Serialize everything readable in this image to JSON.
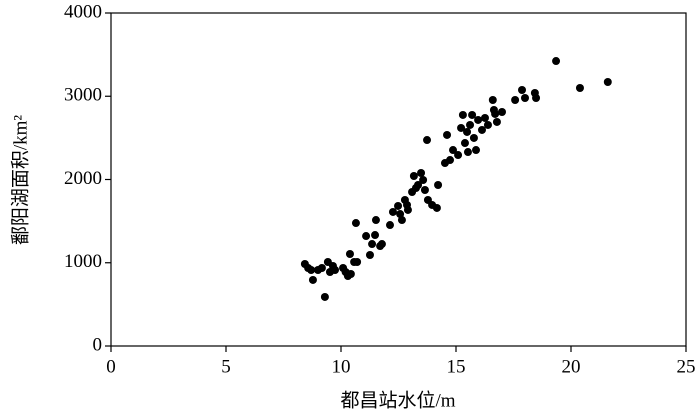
{
  "chart_data": {
    "type": "scatter",
    "x_label": "都昌站水位/m",
    "y_label": "鄱阳湖面积/km²",
    "xlim": [
      0,
      25
    ],
    "xticks": [
      0,
      5,
      10,
      15,
      20,
      25
    ],
    "ylim": [
      0,
      4000
    ],
    "yticks": [
      0,
      1000,
      2000,
      3000,
      4000
    ],
    "color": "#000000",
    "x": [
      8.43,
      8.57,
      8.7,
      8.78,
      9.0,
      9.17,
      9.3,
      9.43,
      9.52,
      9.65,
      9.74,
      10.09,
      10.2,
      10.3,
      10.39,
      10.43,
      10.57,
      10.7,
      10.65,
      11.09,
      11.26,
      11.35,
      11.48,
      11.52,
      11.7,
      11.78,
      12.13,
      12.26,
      12.48,
      12.57,
      12.65,
      12.78,
      12.87,
      12.91,
      13.09,
      13.17,
      13.26,
      13.35,
      13.48,
      13.57,
      13.65,
      13.74,
      13.78,
      13.96,
      14.17,
      14.22,
      14.52,
      14.61,
      14.74,
      14.87,
      15.09,
      15.22,
      15.3,
      15.39,
      15.48,
      15.52,
      15.61,
      15.7,
      15.78,
      15.87,
      15.96,
      16.13,
      16.26,
      16.39,
      16.6,
      16.65,
      16.7,
      16.78,
      17.0,
      17.57,
      17.87,
      18.0,
      18.43,
      18.48,
      19.35,
      20.39,
      21.6
    ],
    "y": [
      985,
      937,
      913,
      793,
      913,
      937,
      589,
      1009,
      889,
      961,
      913,
      937,
      889,
      841,
      1105,
      865,
      1009,
      1009,
      1477,
      1321,
      1093,
      1225,
      1333,
      1513,
      1201,
      1225,
      1453,
      1610,
      1682,
      1585,
      1513,
      1754,
      1694,
      1634,
      1850,
      2042,
      1898,
      1934,
      2078,
      1994,
      1874,
      2474,
      1754,
      1694,
      1658,
      1934,
      2198,
      2535,
      2234,
      2354,
      2294,
      2619,
      2775,
      2438,
      2571,
      2330,
      2655,
      2775,
      2499,
      2354,
      2715,
      2595,
      2739,
      2655,
      2955,
      2835,
      2787,
      2691,
      2811,
      2955,
      3075,
      2979,
      3039,
      2979,
      3423,
      3099,
      3171
    ]
  }
}
